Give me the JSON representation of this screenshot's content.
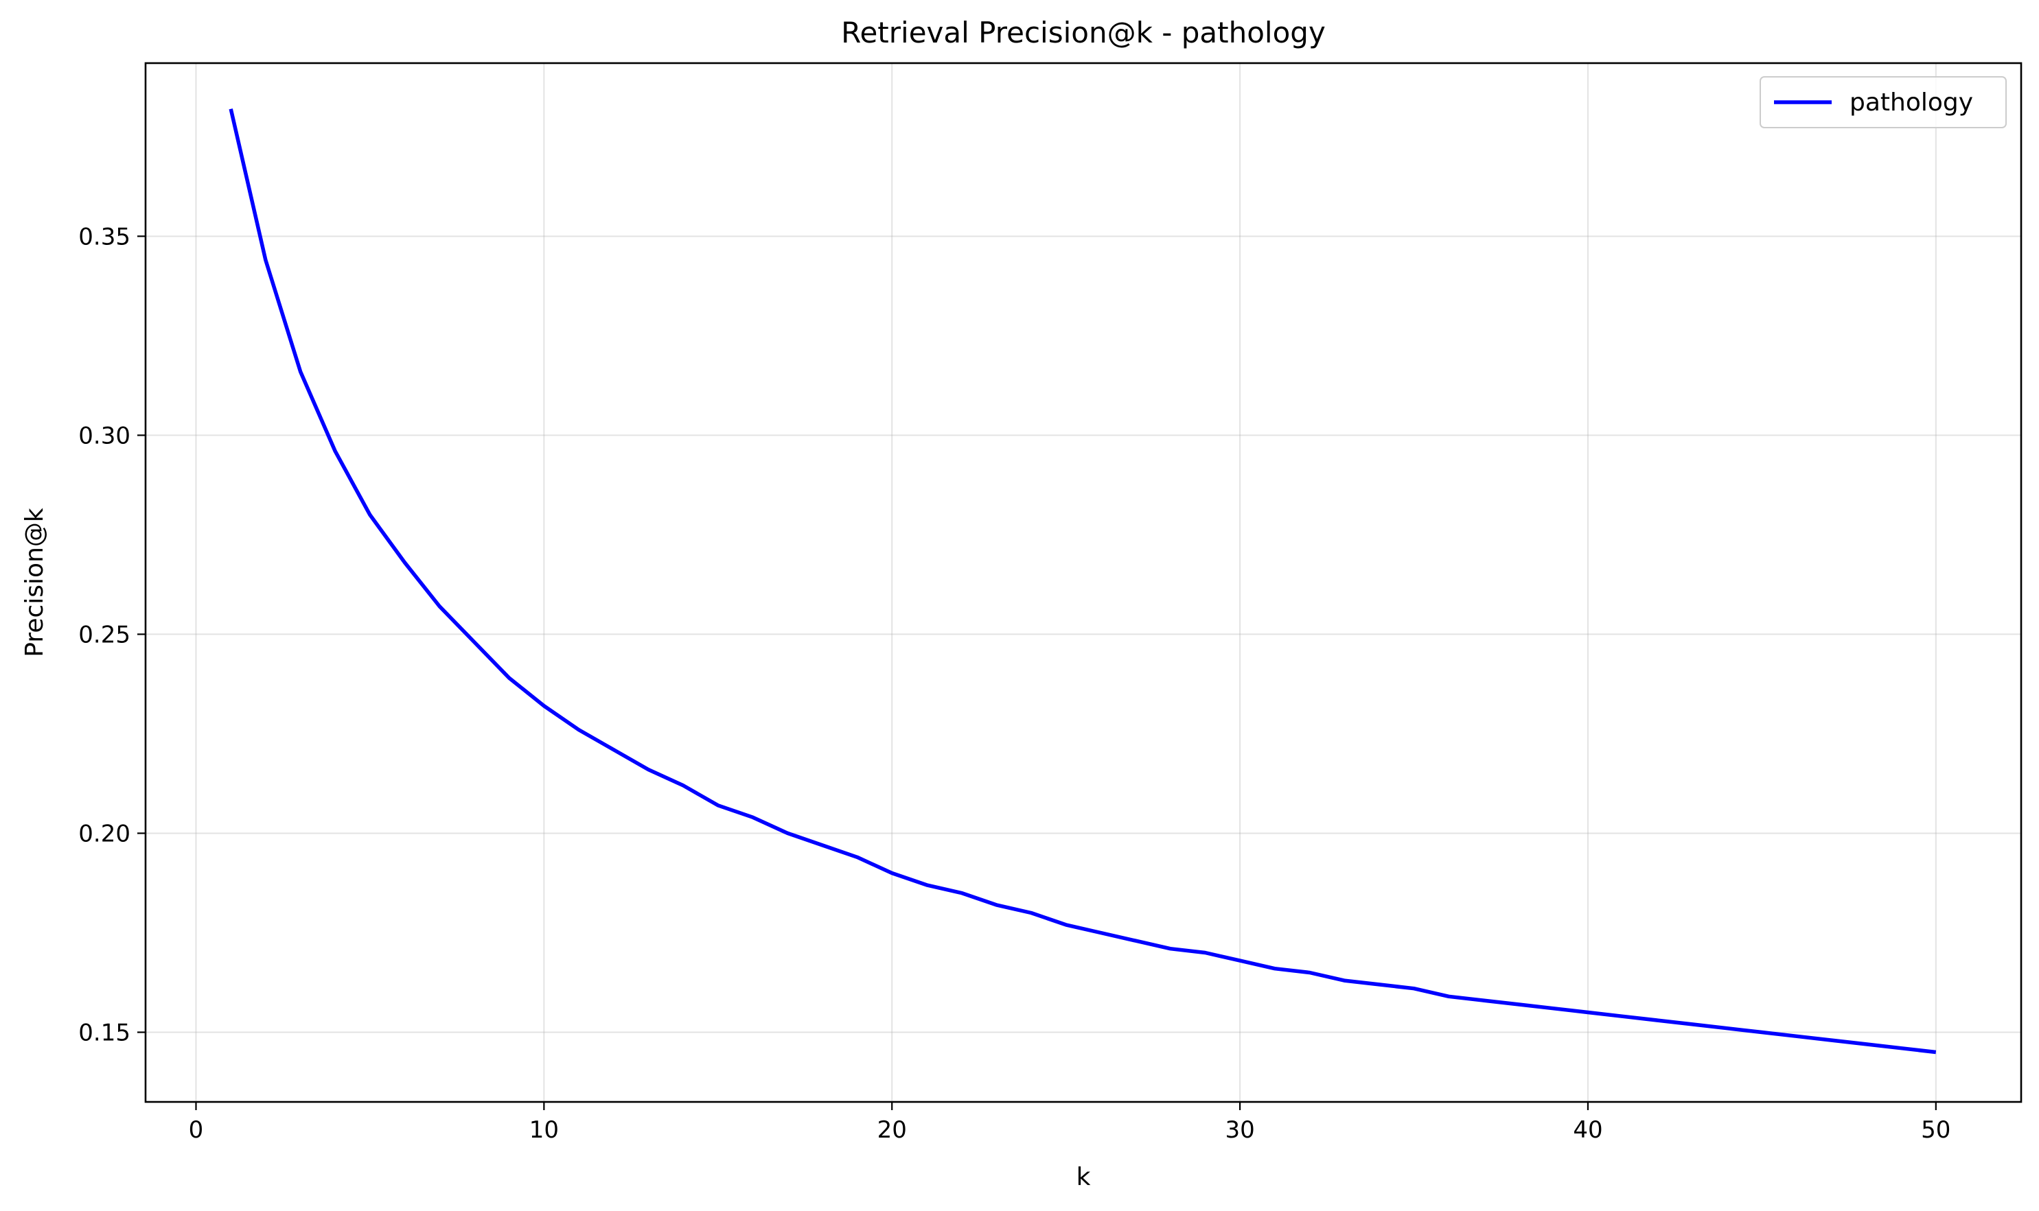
{
  "chart_data": {
    "type": "line",
    "title": "Retrieval Precision@k - pathology",
    "xlabel": "k",
    "ylabel": "Precision@k",
    "xlim": [
      -1.45,
      52.45
    ],
    "ylim": [
      0.1325,
      0.3935
    ],
    "xticks": [
      0,
      10,
      20,
      30,
      40,
      50
    ],
    "xtick_labels": [
      "0",
      "10",
      "20",
      "30",
      "40",
      "50"
    ],
    "yticks": [
      0.15,
      0.2,
      0.25,
      0.3,
      0.35
    ],
    "ytick_labels": [
      "0.15",
      "0.20",
      "0.25",
      "0.30",
      "0.35"
    ],
    "grid": true,
    "legend_position": "top-right",
    "series": [
      {
        "name": "pathology",
        "color": "#0000ff",
        "x": [
          1,
          2,
          3,
          4,
          5,
          6,
          7,
          8,
          9,
          10,
          11,
          12,
          13,
          14,
          15,
          16,
          17,
          18,
          19,
          20,
          21,
          22,
          23,
          24,
          25,
          26,
          27,
          28,
          29,
          30,
          31,
          32,
          33,
          34,
          35,
          36,
          37,
          38,
          39,
          40,
          41,
          42,
          43,
          44,
          45,
          46,
          47,
          48,
          49,
          50
        ],
        "y": [
          0.382,
          0.344,
          0.316,
          0.296,
          0.28,
          0.268,
          0.257,
          0.248,
          0.239,
          0.232,
          0.226,
          0.221,
          0.216,
          0.212,
          0.207,
          0.204,
          0.2,
          0.197,
          0.194,
          0.19,
          0.187,
          0.185,
          0.182,
          0.18,
          0.177,
          0.175,
          0.173,
          0.171,
          0.17,
          0.168,
          0.166,
          0.165,
          0.163,
          0.162,
          0.161,
          0.159,
          0.158,
          0.157,
          0.156,
          0.155,
          0.154,
          0.153,
          0.152,
          0.151,
          0.15,
          0.149,
          0.148,
          0.147,
          0.146,
          0.145
        ]
      }
    ]
  }
}
